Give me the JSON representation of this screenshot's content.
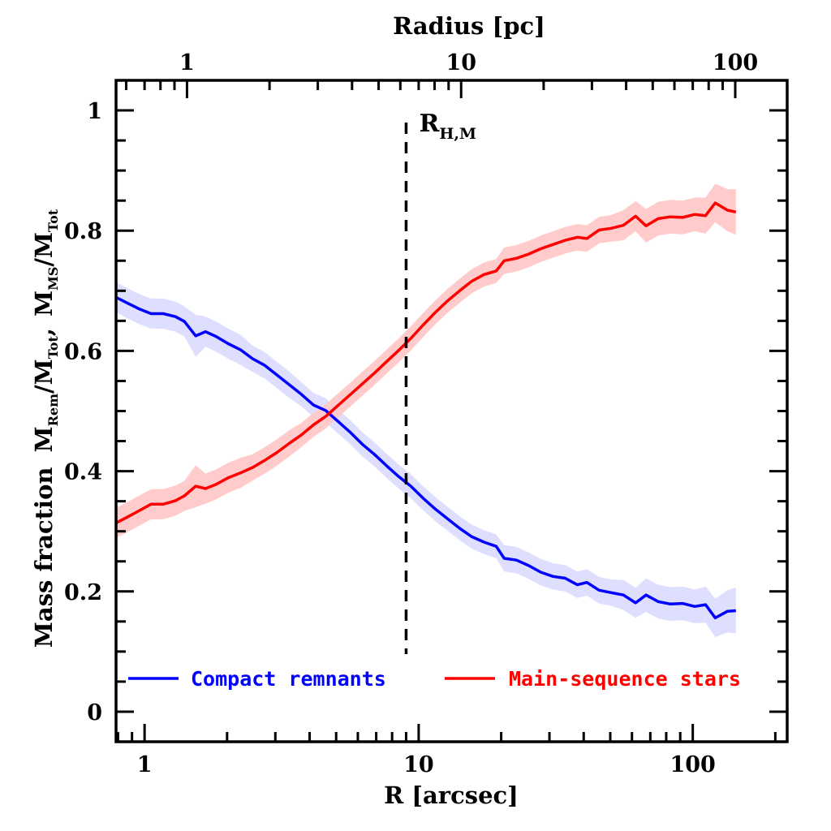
{
  "chart_data": {
    "type": "line",
    "title": "",
    "xlabel": "R [arcsec]",
    "ylabel": "Mass fraction  M_Rem/M_Tot,  M_MS/M_Tot",
    "ylabel_parts": {
      "prefix": "Mass fraction",
      "m1": "M",
      "m1_sub": "Rem",
      "sep1": "/",
      "m2": "M",
      "m2_sub": "Tot",
      "comma": ",",
      "m3": "M",
      "m3_sub": "MS",
      "sep2": "/",
      "m4": "M",
      "m4_sub": "Tot"
    },
    "top_xlabel": "Radius [pc]",
    "xscale": "log",
    "xlim": [
      0.787,
      221
    ],
    "ylim": [
      -0.05,
      1.05
    ],
    "x_ticks": [
      1,
      10,
      100
    ],
    "x_tick_labels": [
      "1",
      "10",
      "100"
    ],
    "top_x_ticks_pc": [
      1,
      10,
      100
    ],
    "top_x_tick_labels": [
      "1",
      "10",
      "100"
    ],
    "pc_per_arcsec": 0.7,
    "y_ticks": [
      0,
      0.2,
      0.4,
      0.6,
      0.8,
      1
    ],
    "y_tick_labels": [
      "0",
      "0.2",
      "0.4",
      "0.6",
      "0.8",
      "1"
    ],
    "grid": false,
    "legend_placement": "bottom",
    "annotation": {
      "label": "R",
      "label_sub": "H,M",
      "x": 9.0,
      "style": "dashed vertical line"
    },
    "x": [
      0.788,
      0.861,
      0.953,
      1.056,
      1.17,
      1.296,
      1.397,
      1.537,
      1.668,
      1.823,
      2.019,
      2.236,
      2.477,
      2.744,
      3.04,
      3.367,
      3.73,
      4.132,
      4.577,
      5.07,
      5.617,
      6.222,
      6.892,
      7.635,
      8.457,
      9.369,
      10.38,
      11.5,
      12.73,
      14.11,
      15.63,
      17.31,
      19.18,
      20.52,
      22.73,
      25.18,
      27.89,
      30.9,
      34.23,
      37.92,
      41.08,
      45.5,
      50.41,
      55.84,
      61.86,
      67.53,
      74.81,
      82.87,
      91.8,
      101.7,
      111.3,
      120.8,
      133.8,
      143.6
    ],
    "series": [
      {
        "name": "Compact remnants",
        "color": "#0000ff",
        "band_color": "#dcdcff",
        "values": [
          0.689,
          0.68,
          0.67,
          0.662,
          0.662,
          0.657,
          0.649,
          0.625,
          0.632,
          0.624,
          0.612,
          0.602,
          0.587,
          0.576,
          0.56,
          0.544,
          0.528,
          0.51,
          0.501,
          0.483,
          0.465,
          0.445,
          0.428,
          0.409,
          0.391,
          0.375,
          0.355,
          0.337,
          0.321,
          0.305,
          0.291,
          0.282,
          0.275,
          0.255,
          0.252,
          0.243,
          0.232,
          0.225,
          0.222,
          0.211,
          0.215,
          0.202,
          0.198,
          0.194,
          0.181,
          0.194,
          0.183,
          0.179,
          0.18,
          0.175,
          0.178,
          0.156,
          0.167,
          0.168
        ],
        "err": [
          0.025,
          0.025,
          0.025,
          0.025,
          0.025,
          0.025,
          0.025,
          0.035,
          0.025,
          0.025,
          0.025,
          0.025,
          0.022,
          0.022,
          0.022,
          0.022,
          0.02,
          0.02,
          0.02,
          0.02,
          0.02,
          0.02,
          0.02,
          0.02,
          0.02,
          0.02,
          0.02,
          0.02,
          0.02,
          0.02,
          0.02,
          0.02,
          0.02,
          0.022,
          0.022,
          0.022,
          0.022,
          0.022,
          0.022,
          0.022,
          0.022,
          0.022,
          0.022,
          0.025,
          0.025,
          0.028,
          0.028,
          0.028,
          0.028,
          0.028,
          0.03,
          0.032,
          0.035,
          0.038
        ]
      },
      {
        "name": "Main-sequence stars",
        "color": "#ff0000",
        "band_color": "#ffc8c8",
        "values": [
          0.314,
          0.323,
          0.334,
          0.345,
          0.345,
          0.351,
          0.359,
          0.375,
          0.371,
          0.378,
          0.389,
          0.397,
          0.406,
          0.418,
          0.431,
          0.446,
          0.46,
          0.477,
          0.491,
          0.509,
          0.527,
          0.545,
          0.563,
          0.582,
          0.601,
          0.621,
          0.643,
          0.664,
          0.683,
          0.7,
          0.716,
          0.727,
          0.733,
          0.75,
          0.754,
          0.761,
          0.77,
          0.777,
          0.784,
          0.789,
          0.787,
          0.801,
          0.804,
          0.809,
          0.824,
          0.808,
          0.82,
          0.823,
          0.822,
          0.827,
          0.825,
          0.846,
          0.834,
          0.831
        ],
        "err": [
          0.025,
          0.025,
          0.025,
          0.025,
          0.025,
          0.025,
          0.025,
          0.035,
          0.025,
          0.025,
          0.025,
          0.025,
          0.022,
          0.022,
          0.022,
          0.022,
          0.02,
          0.02,
          0.02,
          0.02,
          0.02,
          0.02,
          0.02,
          0.02,
          0.02,
          0.02,
          0.02,
          0.02,
          0.02,
          0.02,
          0.02,
          0.02,
          0.02,
          0.022,
          0.022,
          0.022,
          0.022,
          0.022,
          0.022,
          0.022,
          0.022,
          0.022,
          0.022,
          0.025,
          0.025,
          0.028,
          0.028,
          0.028,
          0.028,
          0.028,
          0.03,
          0.032,
          0.035,
          0.038
        ]
      }
    ]
  }
}
